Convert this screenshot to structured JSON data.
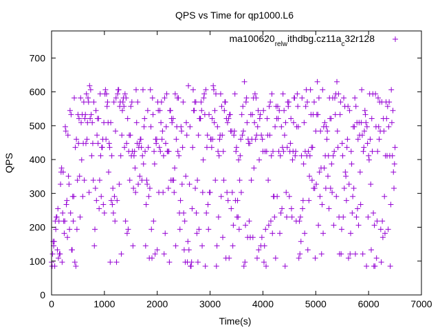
{
  "chart_data": {
    "type": "scatter",
    "title": "QPS vs Time for qp1000.L6",
    "xlabel": "Time(s)",
    "ylabel": "QPS",
    "xlim": [
      0,
      7000
    ],
    "ylim": [
      0,
      780
    ],
    "xticks": [
      0,
      1000,
      2000,
      3000,
      4000,
      5000,
      6000,
      7000
    ],
    "yticks": [
      0,
      100,
      200,
      300,
      400,
      500,
      600,
      700
    ],
    "grid": false,
    "legend": "top-right",
    "series": [
      {
        "name": "ma100620_rel_withdbg.cz11a_c32r128",
        "legend_label_parts": [
          {
            "text": "ma100620",
            "sub": false
          },
          {
            "text": "rel",
            "sub": true
          },
          {
            "text": "w",
            "sub": true
          },
          {
            "text": "ithdbg.cz11a",
            "sub": false
          },
          {
            "text": "c",
            "sub": true
          },
          {
            "text": "32r128",
            "sub": false
          }
        ],
        "color": "#9400d3",
        "marker": "plus",
        "x_range": [
          0,
          6500
        ],
        "sample_interval_s": 10,
        "qps_levels": [
          60,
          72,
          85,
          97,
          109,
          121,
          133,
          145,
          158,
          170,
          182,
          194,
          206,
          218,
          230,
          242,
          255,
          267,
          279,
          291,
          303,
          315,
          327,
          339,
          351,
          363,
          375,
          387,
          399,
          411,
          424,
          436,
          448,
          460,
          472,
          484,
          497,
          509,
          521,
          533,
          545,
          557,
          570,
          582,
          594,
          606,
          618,
          630,
          642,
          655
        ],
        "warmup_end_s": 300,
        "typical_range": [
          85,
          606
        ],
        "max": 655,
        "min": 60
      }
    ]
  }
}
